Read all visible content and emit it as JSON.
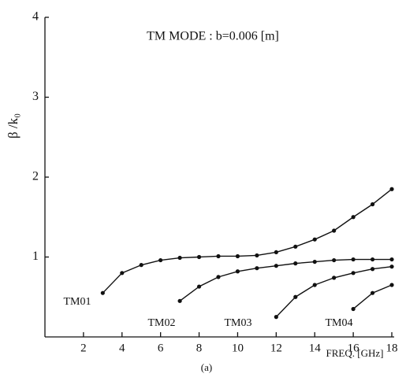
{
  "chart_data": {
    "type": "line",
    "title": "TM MODE : b=0.006 [m]",
    "y_label": "β /k₀",
    "x_label": "FREQ. [GHz]",
    "caption": "(a)",
    "xlim": [
      0,
      18
    ],
    "xticks": [
      2,
      4,
      6,
      8,
      10,
      12,
      14,
      16,
      18
    ],
    "ylim": [
      0,
      4
    ],
    "yticks": [
      1,
      2,
      3,
      4
    ],
    "color": "#111111",
    "series": [
      {
        "name": "TM01",
        "x": [
          3,
          4,
          5,
          6,
          7,
          8,
          9,
          10,
          11,
          12,
          13,
          14,
          15,
          16,
          17,
          18
        ],
        "values": [
          0.55,
          0.8,
          0.9,
          0.96,
          0.99,
          1.0,
          1.01,
          1.01,
          1.02,
          1.06,
          1.13,
          1.22,
          1.33,
          1.5,
          1.66,
          1.85
        ]
      },
      {
        "name": "TM02",
        "x": [
          7,
          8,
          9,
          10,
          11,
          12,
          13,
          14,
          15,
          16,
          17,
          18
        ],
        "values": [
          0.45,
          0.63,
          0.75,
          0.82,
          0.86,
          0.89,
          0.92,
          0.94,
          0.96,
          0.97,
          0.97,
          0.97
        ]
      },
      {
        "name": "TM03",
        "x": [
          12,
          13,
          14,
          15,
          16,
          17,
          18
        ],
        "values": [
          0.25,
          0.5,
          0.65,
          0.74,
          0.8,
          0.85,
          0.88
        ]
      },
      {
        "name": "TM04",
        "x": [
          16,
          17,
          18
        ],
        "values": [
          0.35,
          0.55,
          0.65
        ]
      }
    ]
  }
}
